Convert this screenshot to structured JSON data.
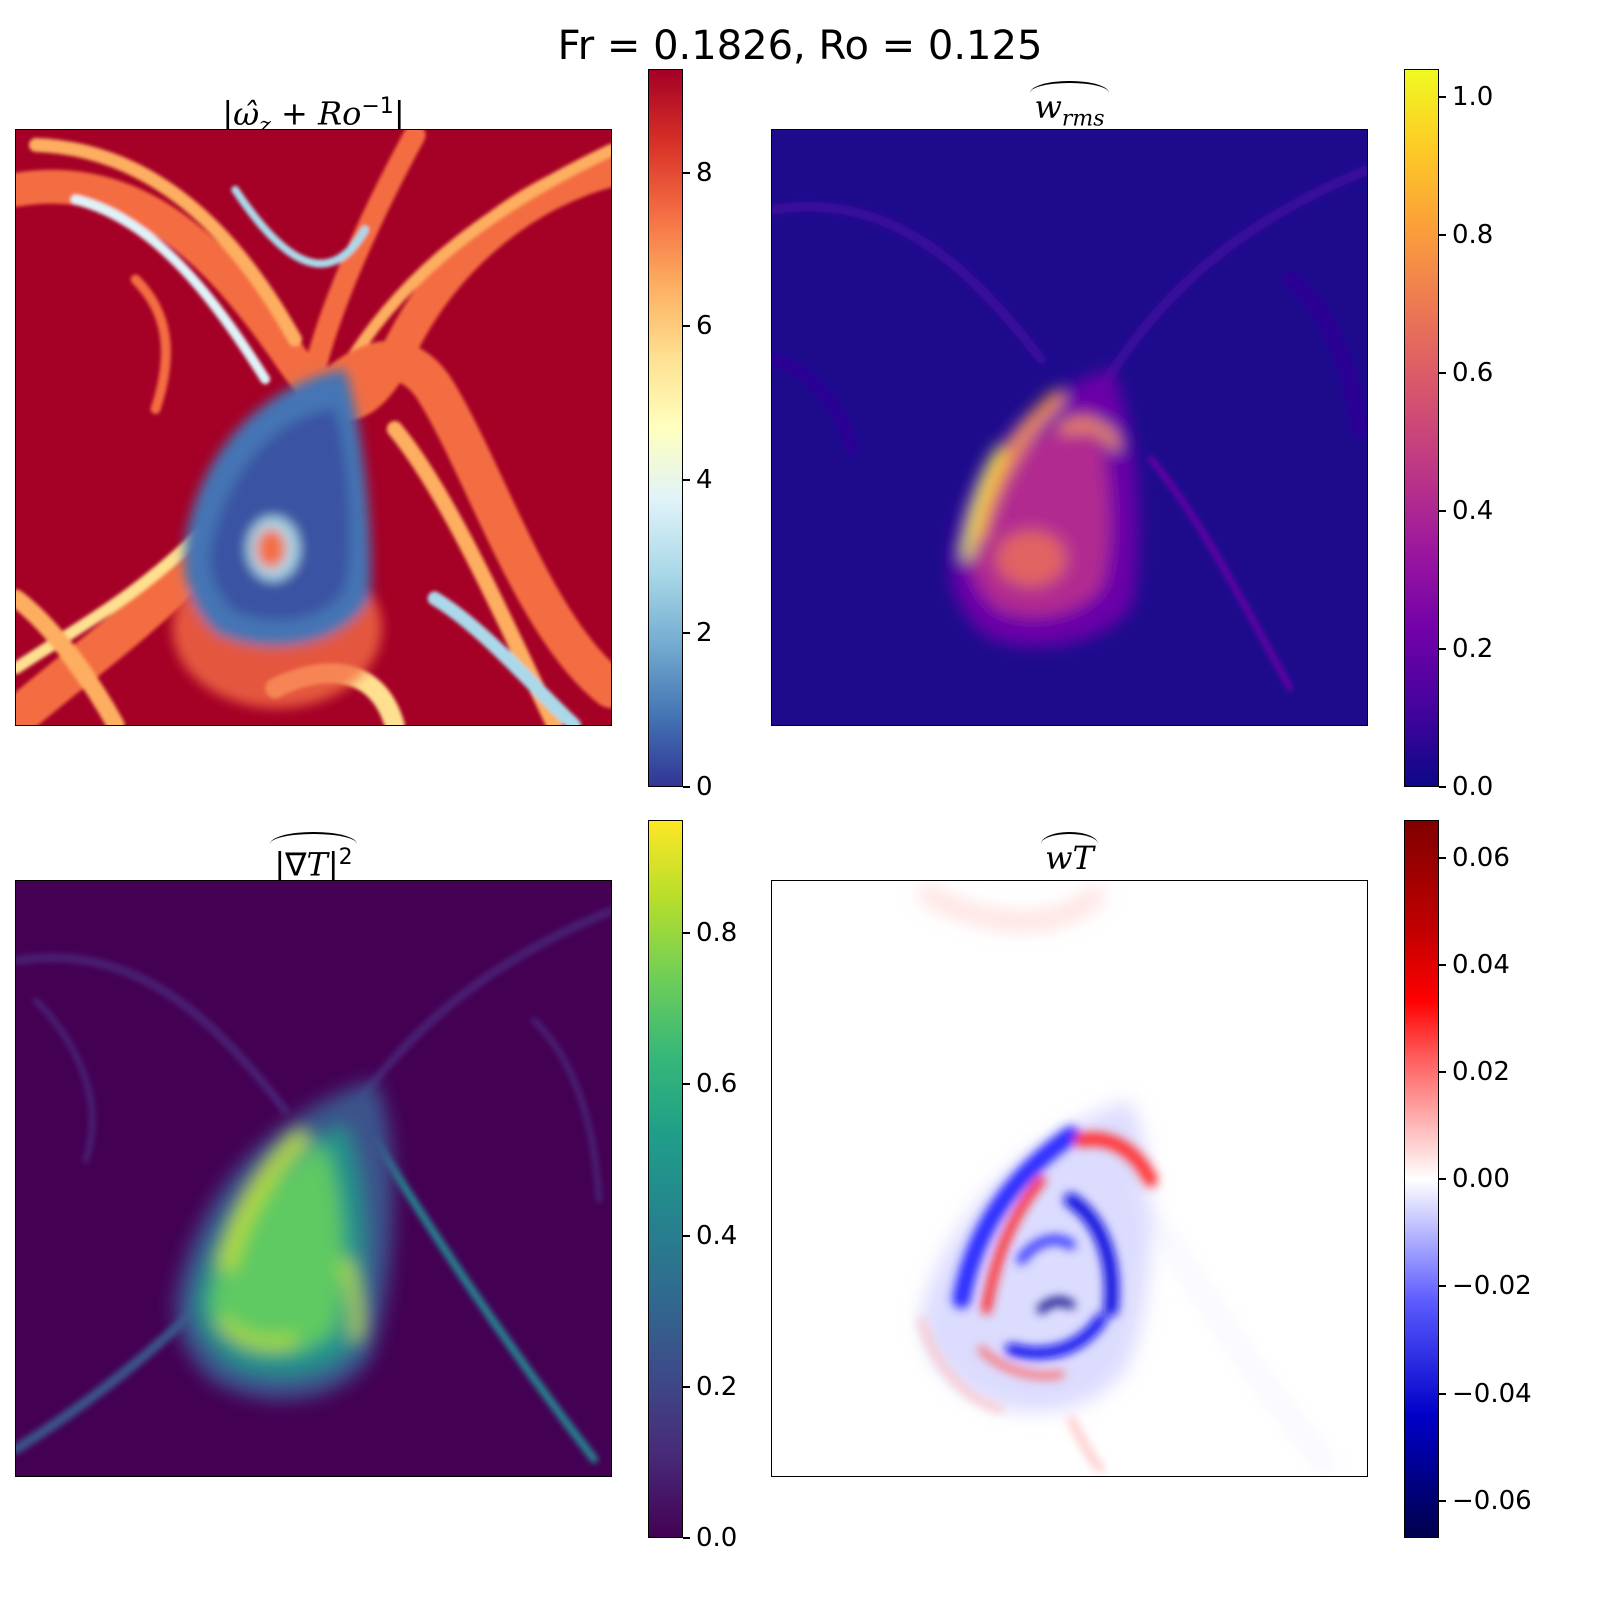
{
  "suptitle": "Fr = 0.1826, Ro = 0.125",
  "chart_data": [
    {
      "type": "heatmap",
      "title": "|ω̂_z + Ro⁻¹|",
      "colormap": "RdYlBu_r",
      "colorbar": {
        "range": [
          0,
          9.3
        ],
        "ticks": [
          0,
          2,
          4,
          6,
          8
        ]
      }
    },
    {
      "type": "heatmap",
      "title": "w_rms",
      "colormap": "plasma",
      "colorbar": {
        "range": [
          0,
          1.04
        ],
        "ticks": [
          0.0,
          0.2,
          0.4,
          0.6,
          0.8,
          1.0
        ]
      }
    },
    {
      "type": "heatmap",
      "title": "|∇T|²",
      "colormap": "viridis",
      "colorbar": {
        "range": [
          0,
          0.95
        ],
        "ticks": [
          0.0,
          0.2,
          0.4,
          0.6,
          0.8
        ]
      }
    },
    {
      "type": "heatmap",
      "title": "wT",
      "colormap": "seismic",
      "colorbar": {
        "range": [
          -0.066,
          0.066
        ],
        "ticks": [
          -0.06,
          -0.04,
          -0.02,
          0.0,
          0.02,
          0.04,
          0.06
        ]
      }
    }
  ],
  "tick_labels": {
    "p1": [
      "0",
      "2",
      "4",
      "6",
      "8"
    ],
    "p2": [
      "0.0",
      "0.2",
      "0.4",
      "0.6",
      "0.8",
      "1.0"
    ],
    "p3": [
      "0.0",
      "0.2",
      "0.4",
      "0.6",
      "0.8"
    ],
    "p4": [
      "−0.06",
      "−0.04",
      "−0.02",
      "0.00",
      "0.02",
      "0.04",
      "0.06"
    ]
  }
}
